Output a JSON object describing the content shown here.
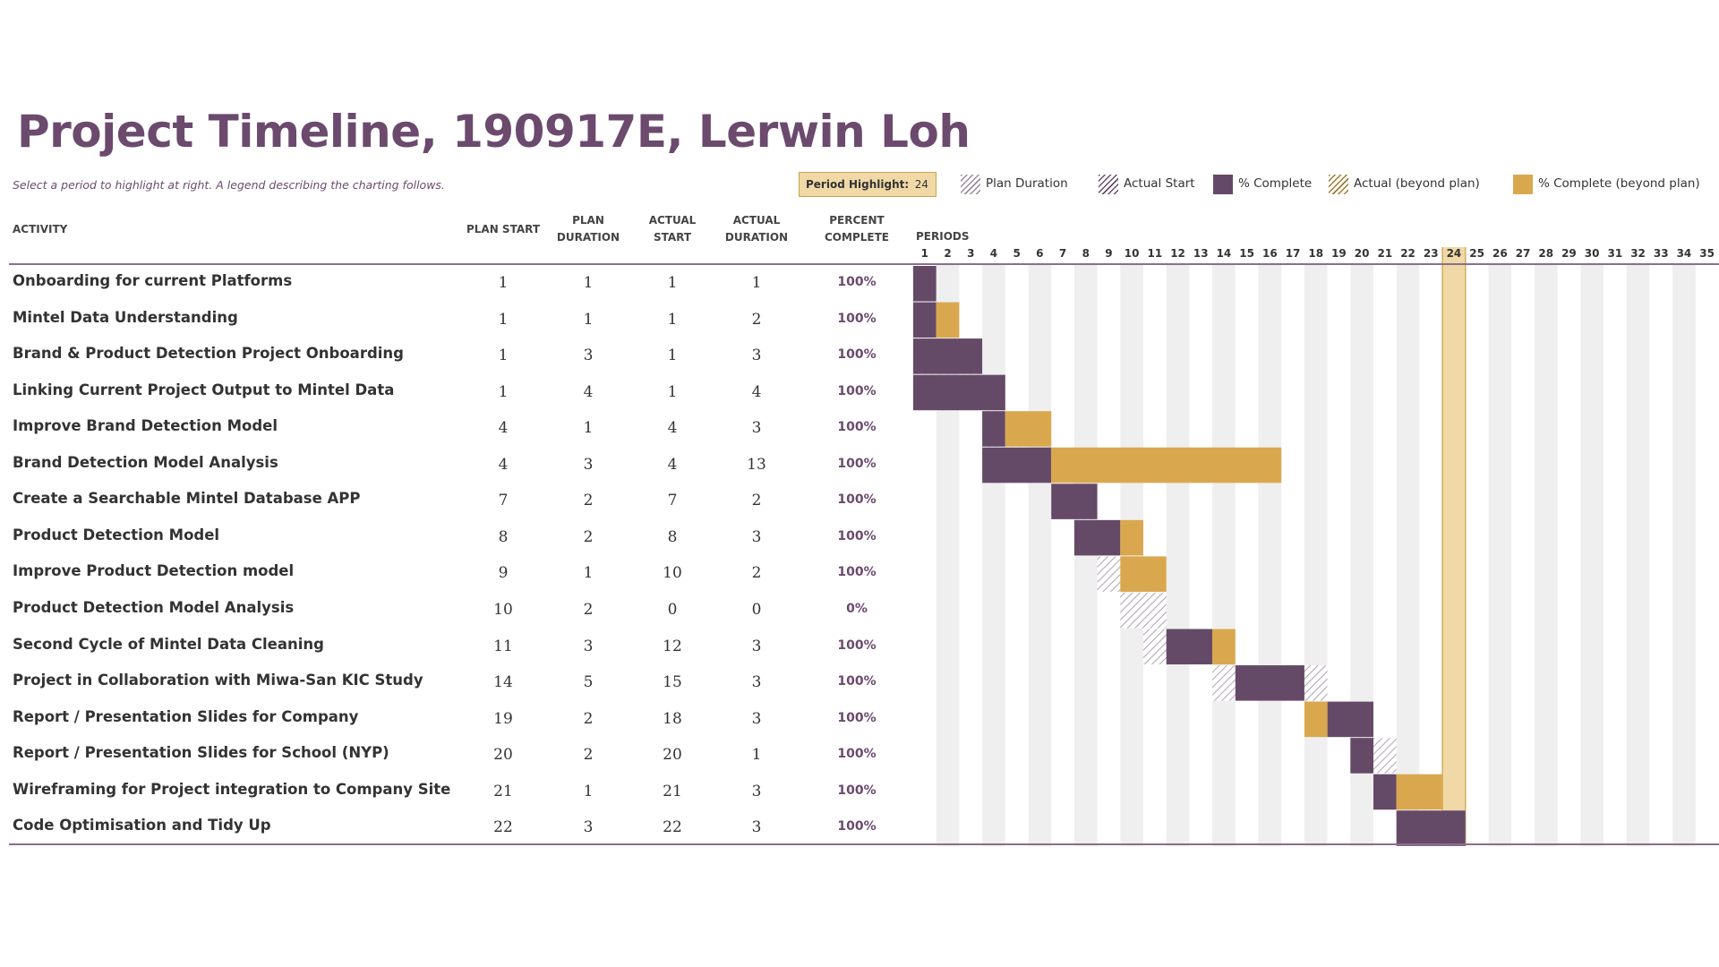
{
  "title": "Project Timeline, 190917E, Lerwin Loh",
  "subtitle": "Select a period to highlight at right.  A legend describing the charting follows.",
  "legend": {
    "period_highlight_label": "Period Highlight:",
    "period_highlight_value": "24",
    "items": [
      {
        "label": "Plan Duration",
        "style": "hatch-grey"
      },
      {
        "label": "Actual Start",
        "style": "hatch-purple"
      },
      {
        "label": "% Complete",
        "style": "fill-purple"
      },
      {
        "label": "Actual (beyond plan)",
        "style": "hatch-gold"
      },
      {
        "label": "% Complete (beyond plan)",
        "style": "fill-gold"
      }
    ]
  },
  "columns": {
    "activity": "ACTIVITY",
    "plan_start": "PLAN START",
    "plan_duration_1": "PLAN",
    "plan_duration_2": "DURATION",
    "actual_start_1": "ACTUAL",
    "actual_start_2": "START",
    "actual_duration_1": "ACTUAL",
    "actual_duration_2": "DURATION",
    "percent_1": "PERCENT",
    "percent_2": "COMPLETE",
    "periods": "PERIODS"
  },
  "colors": {
    "purple": "#654a68",
    "gold": "#d9a84e",
    "highlight": "#f0d9a6",
    "title": "#6b4a6e"
  },
  "chart_data": {
    "type": "gantt",
    "periods": [
      1,
      2,
      3,
      4,
      5,
      6,
      7,
      8,
      9,
      10,
      11,
      12,
      13,
      14,
      15,
      16,
      17,
      18,
      19,
      20,
      21,
      22,
      23,
      24,
      25,
      26,
      27,
      28,
      29,
      30,
      31,
      32,
      33,
      34,
      35
    ],
    "highlight_period": 24,
    "rows": [
      {
        "activity": "Onboarding for current Platforms",
        "plan_start": 1,
        "plan_duration": 1,
        "actual_start": 1,
        "actual_duration": 1,
        "percent": "100%"
      },
      {
        "activity": "Mintel Data Understanding",
        "plan_start": 1,
        "plan_duration": 1,
        "actual_start": 1,
        "actual_duration": 2,
        "percent": "100%"
      },
      {
        "activity": "Brand & Product Detection Project Onboarding",
        "plan_start": 1,
        "plan_duration": 3,
        "actual_start": 1,
        "actual_duration": 3,
        "percent": "100%"
      },
      {
        "activity": "Linking Current Project Output to Mintel Data",
        "plan_start": 1,
        "plan_duration": 4,
        "actual_start": 1,
        "actual_duration": 4,
        "percent": "100%"
      },
      {
        "activity": "Improve Brand Detection Model",
        "plan_start": 4,
        "plan_duration": 1,
        "actual_start": 4,
        "actual_duration": 3,
        "percent": "100%"
      },
      {
        "activity": "Brand Detection Model Analysis",
        "plan_start": 4,
        "plan_duration": 3,
        "actual_start": 4,
        "actual_duration": 13,
        "percent": "100%"
      },
      {
        "activity": "Create a Searchable Mintel Database APP",
        "plan_start": 7,
        "plan_duration": 2,
        "actual_start": 7,
        "actual_duration": 2,
        "percent": "100%"
      },
      {
        "activity": "Product Detection Model",
        "plan_start": 8,
        "plan_duration": 2,
        "actual_start": 8,
        "actual_duration": 3,
        "percent": "100%"
      },
      {
        "activity": "Improve Product Detection model",
        "plan_start": 9,
        "plan_duration": 1,
        "actual_start": 10,
        "actual_duration": 2,
        "percent": "100%"
      },
      {
        "activity": "Product Detection Model Analysis",
        "plan_start": 10,
        "plan_duration": 2,
        "actual_start": 0,
        "actual_duration": 0,
        "percent": "0%"
      },
      {
        "activity": "Second Cycle of Mintel Data Cleaning",
        "plan_start": 11,
        "plan_duration": 3,
        "actual_start": 12,
        "actual_duration": 3,
        "percent": "100%"
      },
      {
        "activity": "Project in Collaboration with Miwa-San KIC Study",
        "plan_start": 14,
        "plan_duration": 5,
        "actual_start": 15,
        "actual_duration": 3,
        "percent": "100%"
      },
      {
        "activity": "Report / Presentation Slides for Company",
        "plan_start": 19,
        "plan_duration": 2,
        "actual_start": 18,
        "actual_duration": 3,
        "percent": "100%"
      },
      {
        "activity": "Report / Presentation Slides for School (NYP)",
        "plan_start": 20,
        "plan_duration": 2,
        "actual_start": 20,
        "actual_duration": 1,
        "percent": "100%"
      },
      {
        "activity": "Wireframing for Project integration to Company Site",
        "plan_start": 21,
        "plan_duration": 1,
        "actual_start": 21,
        "actual_duration": 3,
        "percent": "100%"
      },
      {
        "activity": "Code Optimisation and Tidy Up",
        "plan_start": 22,
        "plan_duration": 3,
        "actual_start": 22,
        "actual_duration": 3,
        "percent": "100%"
      }
    ]
  }
}
